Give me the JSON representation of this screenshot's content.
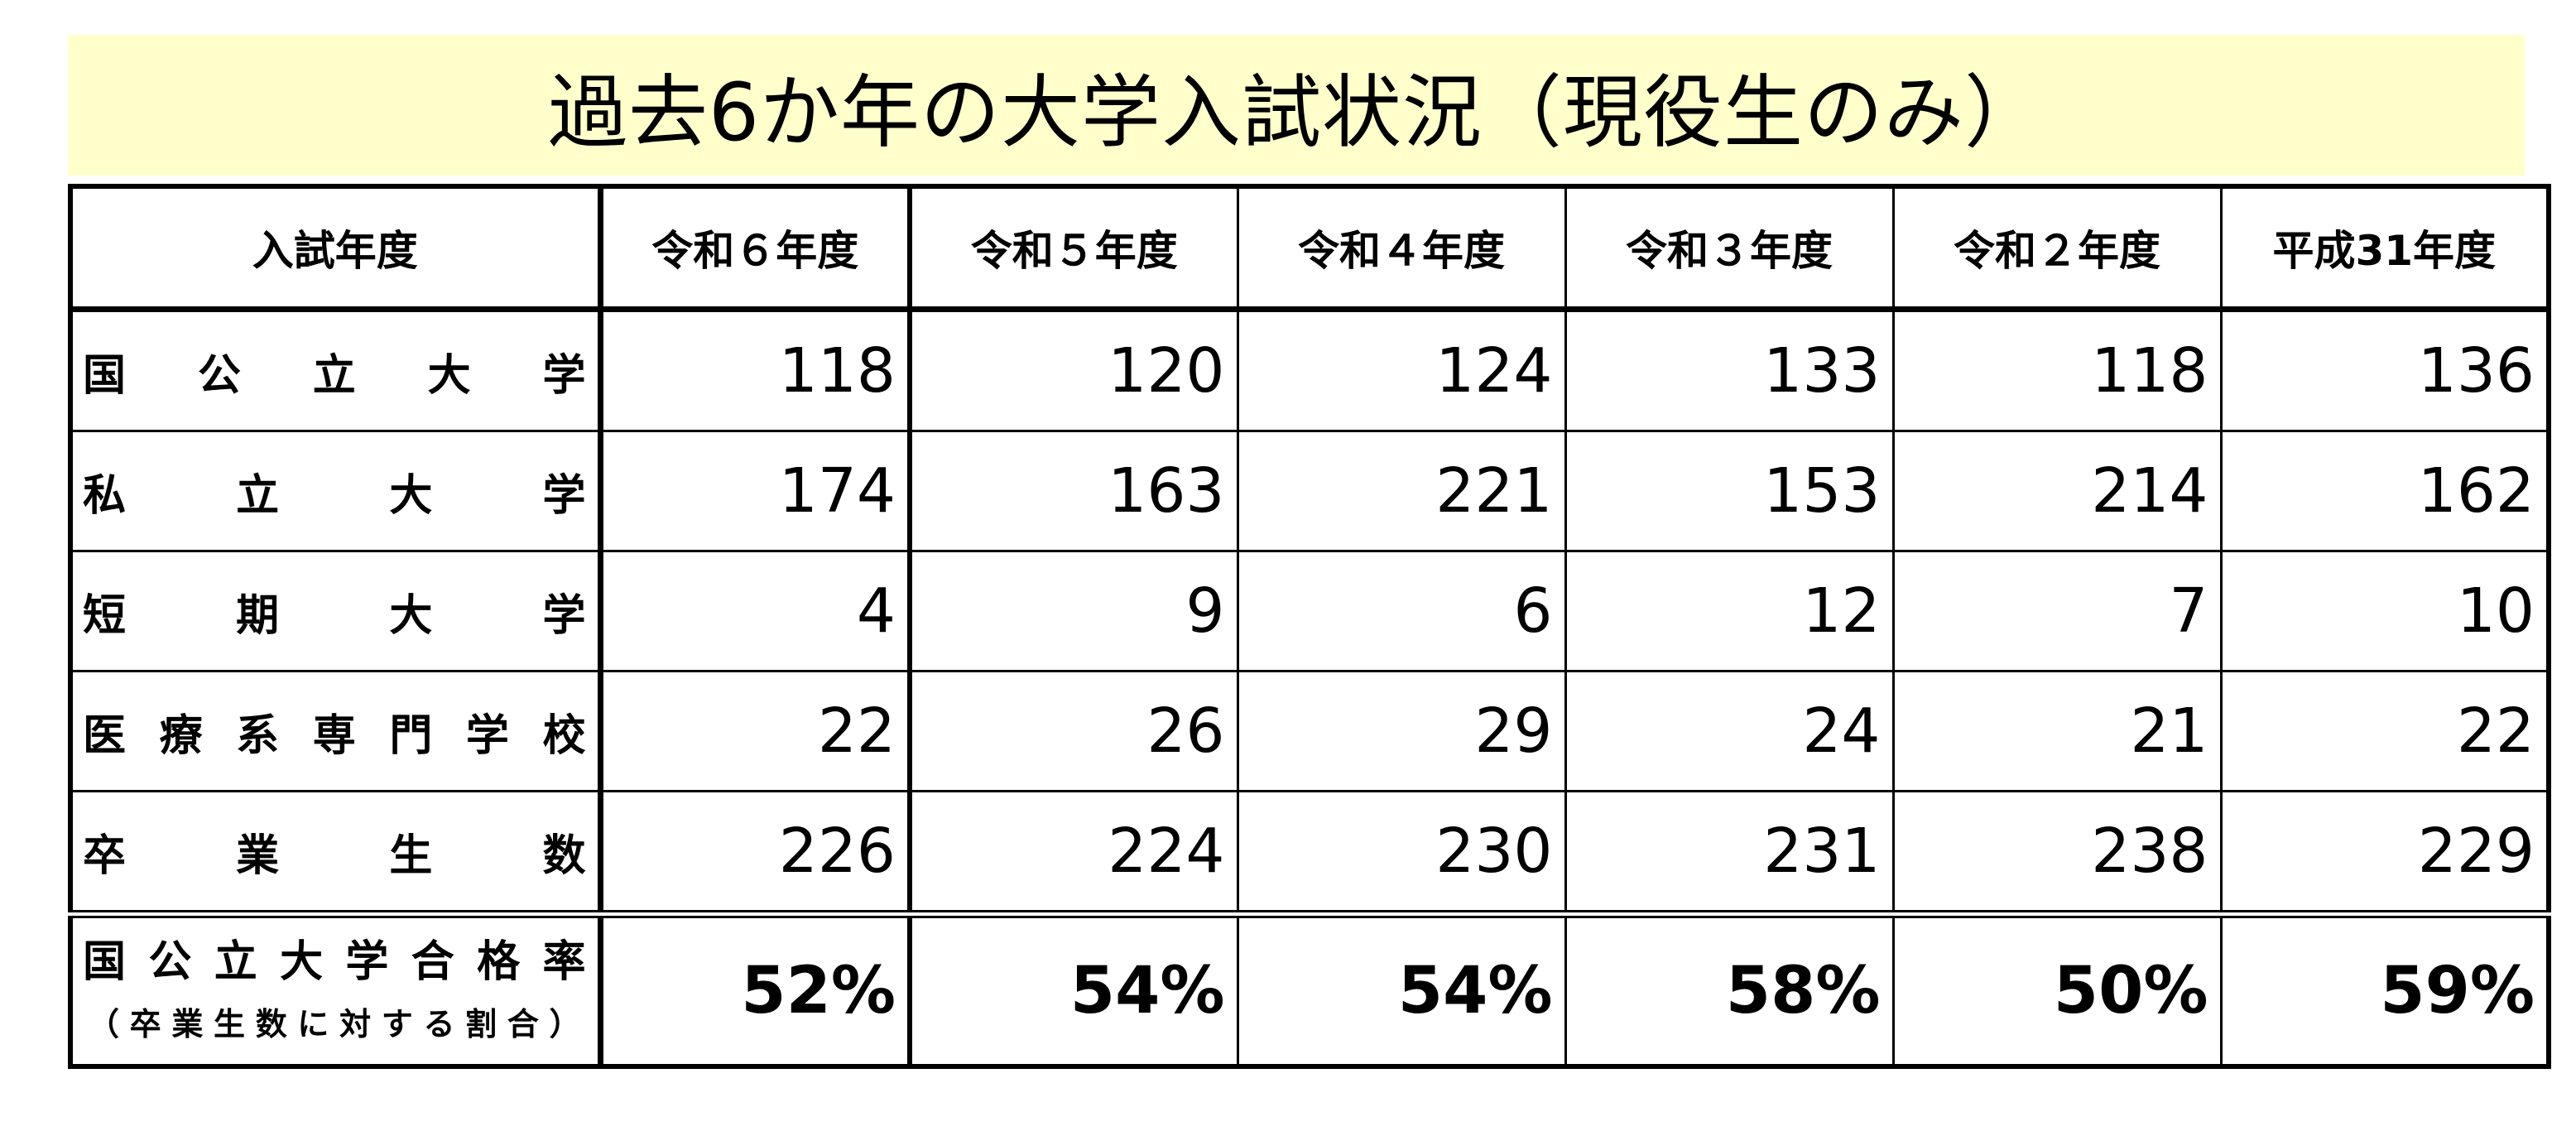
{
  "title": "過去6か年の大学入試状況（現役生のみ）",
  "header": {
    "label": "入試年度",
    "years": [
      "令和６年度",
      "令和５年度",
      "令和４年度",
      "令和３年度",
      "令和２年度",
      "平成31年度"
    ]
  },
  "rows": [
    {
      "label": "国公立大学",
      "values": [
        "118",
        "120",
        "124",
        "133",
        "118",
        "136"
      ]
    },
    {
      "label": "私立大学",
      "values": [
        "174",
        "163",
        "221",
        "153",
        "214",
        "162"
      ]
    },
    {
      "label": "短期大学",
      "values": [
        "4",
        "9",
        "6",
        "12",
        "7",
        "10"
      ]
    },
    {
      "label": "医療系専門学校",
      "values": [
        "22",
        "26",
        "29",
        "24",
        "21",
        "22"
      ]
    },
    {
      "label": "卒業生数",
      "values": [
        "226",
        "224",
        "230",
        "231",
        "238",
        "229"
      ]
    }
  ],
  "rate_row": {
    "label": "国公立大学合格率",
    "sublabel": "（卒業生数に対する割合）",
    "values": [
      "52%",
      "54%",
      "54%",
      "58%",
      "50%",
      "59%"
    ]
  }
}
